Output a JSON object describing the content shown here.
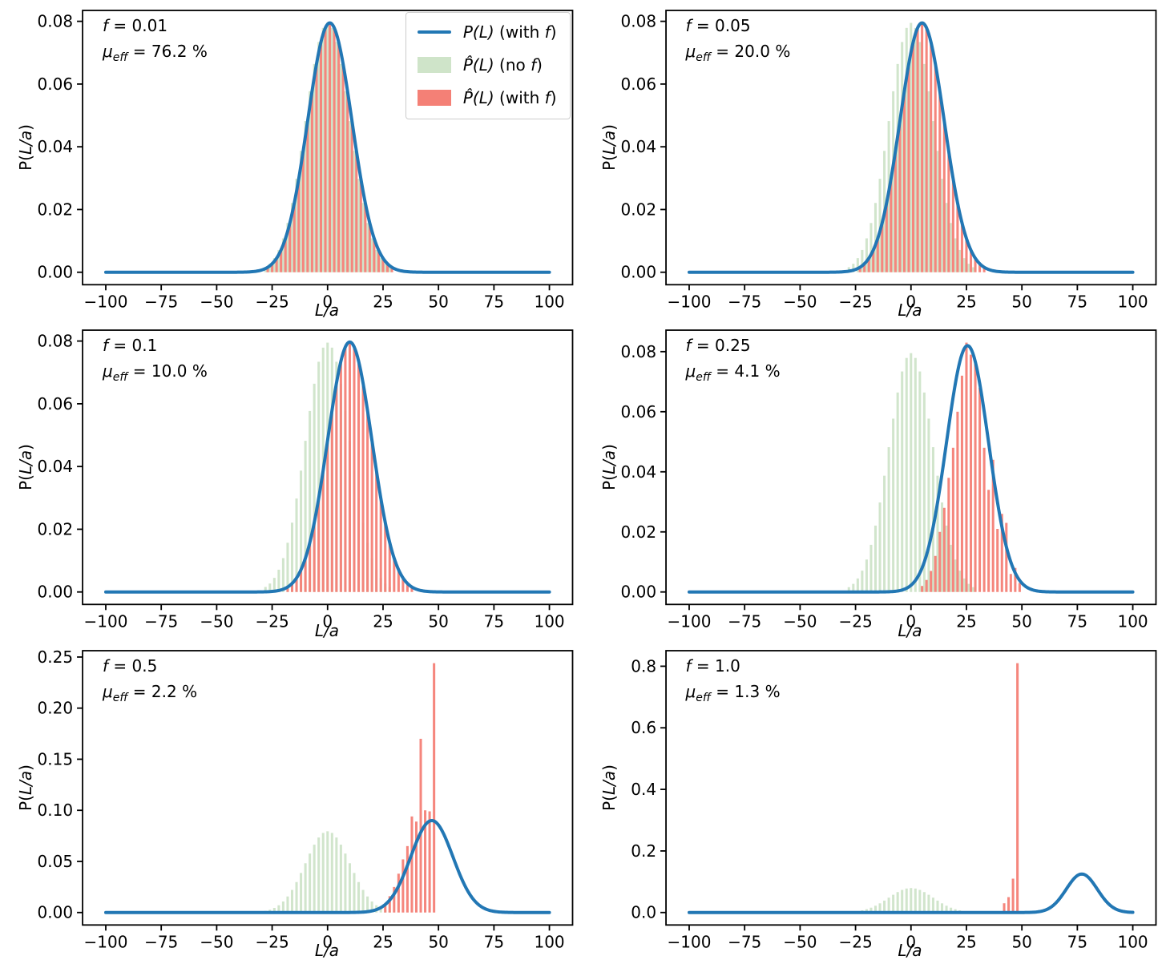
{
  "colors": {
    "curve": "#2277b4",
    "hist_no_f": "#cfe4c9",
    "hist_with_f": "#f48076",
    "axis": "#000000",
    "legend_border": "#cccccc"
  },
  "legend": {
    "items": [
      {
        "math": "P(L)",
        "pre": " (with ",
        "f": "f",
        "post": ")",
        "swatch": "line-blue"
      },
      {
        "math": "P̂(L)",
        "pre": " (no ",
        "f": "f",
        "post": ")",
        "swatch": "patch-green"
      },
      {
        "math": "P̂(L)",
        "pre": " (with ",
        "f": "f",
        "post": ")",
        "swatch": "patch-red"
      }
    ]
  },
  "shared": {
    "kernel_offsets": [
      -28,
      -26,
      -24,
      -22,
      -20,
      -18,
      -16,
      -14,
      -12,
      -10,
      -8,
      -6,
      -4,
      -2,
      0,
      2,
      4,
      6,
      8,
      10,
      12,
      14,
      16,
      18,
      20,
      22,
      24,
      26,
      28
    ],
    "kernel_heights": [
      0.0016,
      0.0027,
      0.0045,
      0.0071,
      0.0108,
      0.0157,
      0.0221,
      0.0298,
      0.0387,
      0.0482,
      0.0577,
      0.0664,
      0.0734,
      0.0779,
      0.0795,
      0.0779,
      0.0734,
      0.0664,
      0.0577,
      0.0482,
      0.0387,
      0.0298,
      0.0221,
      0.0157,
      0.0108,
      0.0071,
      0.0045,
      0.0027,
      0.0016
    ]
  },
  "chart_data": [
    {
      "type": "line+histogram",
      "annotation": {
        "f_sym": "f",
        "f_rest": " = 0.01",
        "mu_sym": "μ",
        "mu_sub": "eff",
        "mu_rest": " = 76.2 %"
      },
      "xlabel": "L/a",
      "ylabel_pre": "P(",
      "ylabel_mid": "L/a",
      "ylabel_post": ")",
      "xlim": [
        -110.45,
        110.45
      ],
      "ylim": [
        -0.003975,
        0.083475
      ],
      "x_tick_values": [
        -100,
        -75,
        -50,
        -25,
        0,
        25,
        50,
        75,
        100
      ],
      "x_tick_labels": [
        "−100",
        "−75",
        "−50",
        "−25",
        "0",
        "25",
        "50",
        "75",
        "100"
      ],
      "y_tick_values": [
        0,
        0.02,
        0.04,
        0.06,
        0.08
      ],
      "y_tick_labels": [
        "0.00",
        "0.02",
        "0.04",
        "0.06",
        "0.08"
      ],
      "curve": {
        "shape": "gaussian",
        "mu": 1,
        "sigma": 10,
        "amp": 0.0795,
        "x_range": [
          -100,
          100
        ]
      },
      "bars_no_f": {
        "use_kernel": true,
        "center": 0
      },
      "bars_with_f": {
        "use_kernel": true,
        "center": 1
      },
      "bar_width_units": 1.1,
      "show_legend": true
    },
    {
      "type": "line+histogram",
      "annotation": {
        "f_sym": "f",
        "f_rest": " = 0.05",
        "mu_sym": "μ",
        "mu_sub": "eff",
        "mu_rest": " = 20.0 %"
      },
      "xlabel": "L/a",
      "ylabel_pre": "P(",
      "ylabel_mid": "L/a",
      "ylabel_post": ")",
      "xlim": [
        -110.45,
        110.45
      ],
      "ylim": [
        -0.003975,
        0.083475
      ],
      "x_tick_values": [
        -100,
        -75,
        -50,
        -25,
        0,
        25,
        50,
        75,
        100
      ],
      "x_tick_labels": [
        "−100",
        "−75",
        "−50",
        "−25",
        "0",
        "25",
        "50",
        "75",
        "100"
      ],
      "y_tick_values": [
        0,
        0.02,
        0.04,
        0.06,
        0.08
      ],
      "y_tick_labels": [
        "0.00",
        "0.02",
        "0.04",
        "0.06",
        "0.08"
      ],
      "curve": {
        "shape": "gaussian",
        "mu": 5,
        "sigma": 10,
        "amp": 0.0795,
        "x_range": [
          -100,
          100
        ]
      },
      "bars_no_f": {
        "use_kernel": true,
        "center": 0
      },
      "bars_with_f": {
        "use_kernel": true,
        "center": 5
      },
      "bar_width_units": 1.1,
      "show_legend": false
    },
    {
      "type": "line+histogram",
      "annotation": {
        "f_sym": "f",
        "f_rest": " = 0.1",
        "mu_sym": "μ",
        "mu_sub": "eff",
        "mu_rest": " = 10.0 %"
      },
      "xlabel": "L/a",
      "ylabel_pre": "P(",
      "ylabel_mid": "L/a",
      "ylabel_post": ")",
      "xlim": [
        -110.45,
        110.45
      ],
      "ylim": [
        -0.003975,
        0.083475
      ],
      "x_tick_values": [
        -100,
        -75,
        -50,
        -25,
        0,
        25,
        50,
        75,
        100
      ],
      "x_tick_labels": [
        "−100",
        "−75",
        "−50",
        "−25",
        "0",
        "25",
        "50",
        "75",
        "100"
      ],
      "y_tick_values": [
        0,
        0.02,
        0.04,
        0.06,
        0.08
      ],
      "y_tick_labels": [
        "0.00",
        "0.02",
        "0.04",
        "0.06",
        "0.08"
      ],
      "curve": {
        "shape": "gaussian",
        "mu": 10,
        "sigma": 10,
        "amp": 0.0797,
        "x_range": [
          -100,
          100
        ]
      },
      "bars_no_f": {
        "use_kernel": true,
        "center": 0
      },
      "bars_with_f": {
        "use_kernel": true,
        "center": 10
      },
      "bar_width_units": 1.1,
      "show_legend": false
    },
    {
      "type": "line+histogram",
      "annotation": {
        "f_sym": "f",
        "f_rest": " = 0.25",
        "mu_sym": "μ",
        "mu_sub": "eff",
        "mu_rest": " = 4.1 %"
      },
      "xlabel": "L/a",
      "ylabel_pre": "P(",
      "ylabel_mid": "L/a",
      "ylabel_post": ")",
      "xlim": [
        -110.45,
        110.45
      ],
      "ylim": [
        -0.00415,
        0.08715
      ],
      "x_tick_values": [
        -100,
        -75,
        -50,
        -25,
        0,
        25,
        50,
        75,
        100
      ],
      "x_tick_labels": [
        "−100",
        "−75",
        "−50",
        "−25",
        "0",
        "25",
        "50",
        "75",
        "100"
      ],
      "y_tick_values": [
        0,
        0.02,
        0.04,
        0.06,
        0.08
      ],
      "y_tick_labels": [
        "0.00",
        "0.02",
        "0.04",
        "0.06",
        "0.08"
      ],
      "curve": {
        "shape": "gaussian",
        "mu": 25.5,
        "sigma": 9.5,
        "amp": 0.082,
        "x_range": [
          -100,
          100
        ]
      },
      "bars_no_f": {
        "use_kernel": true,
        "center": 0
      },
      "bars_with_f": {
        "use_kernel": false,
        "x": [
          5,
          7,
          9,
          11,
          13,
          15,
          17,
          19,
          21,
          23,
          25,
          27,
          29,
          31,
          33,
          35,
          37,
          39,
          41,
          43,
          45,
          47,
          49
        ],
        "heights": [
          0.002,
          0.004,
          0.007,
          0.012,
          0.02,
          0.028,
          0.038,
          0.048,
          0.06,
          0.072,
          0.083,
          0.079,
          0.076,
          0.068,
          0.048,
          0.034,
          0.044,
          0.021,
          0.026,
          0.023,
          0.006,
          0.008,
          0.003
        ]
      },
      "bar_width_units": 1.1,
      "show_legend": false
    },
    {
      "type": "line+histogram",
      "annotation": {
        "f_sym": "f",
        "f_rest": " = 0.5",
        "mu_sym": "μ",
        "mu_sub": "eff",
        "mu_rest": " = 2.2 %"
      },
      "xlabel": "L/a",
      "ylabel_pre": "P(",
      "ylabel_mid": "L/a",
      "ylabel_post": ")",
      "xlim": [
        -110.45,
        110.45
      ],
      "ylim": [
        -0.0122,
        0.2562
      ],
      "x_tick_values": [
        -100,
        -75,
        -50,
        -25,
        0,
        25,
        50,
        75,
        100
      ],
      "x_tick_labels": [
        "−100",
        "−75",
        "−50",
        "−25",
        "0",
        "25",
        "50",
        "75",
        "100"
      ],
      "y_tick_values": [
        0,
        0.05,
        0.1,
        0.15,
        0.2,
        0.25
      ],
      "y_tick_labels": [
        "0.00",
        "0.05",
        "0.10",
        "0.15",
        "0.20",
        "0.25"
      ],
      "curve": {
        "shape": "gaussian",
        "mu": 47,
        "sigma": 9.5,
        "amp": 0.09,
        "x_range": [
          -100,
          100
        ]
      },
      "bars_no_f": {
        "use_kernel": true,
        "center": 0
      },
      "bars_with_f": {
        "use_kernel": false,
        "x": [
          26,
          28,
          30,
          32,
          34,
          36,
          38,
          40,
          42,
          44,
          46,
          48
        ],
        "heights": [
          0.008,
          0.016,
          0.025,
          0.038,
          0.052,
          0.065,
          0.094,
          0.089,
          0.17,
          0.1,
          0.099,
          0.244
        ]
      },
      "bar_width_units": 1.1,
      "show_legend": false
    },
    {
      "type": "line+histogram",
      "annotation": {
        "f_sym": "f",
        "f_rest": " = 1.0",
        "mu_sym": "μ",
        "mu_sub": "eff",
        "mu_rest": " = 1.3 %"
      },
      "xlabel": "L/a",
      "ylabel_pre": "P(",
      "ylabel_mid": "L/a",
      "ylabel_post": ")",
      "xlim": [
        -110.45,
        110.45
      ],
      "ylim": [
        -0.0405,
        0.8505
      ],
      "x_tick_values": [
        -100,
        -75,
        -50,
        -25,
        0,
        25,
        50,
        75,
        100
      ],
      "x_tick_labels": [
        "−100",
        "−75",
        "−50",
        "−25",
        "0",
        "25",
        "50",
        "75",
        "100"
      ],
      "y_tick_values": [
        0,
        0.2,
        0.4,
        0.6,
        0.8
      ],
      "y_tick_labels": [
        "0.0",
        "0.2",
        "0.4",
        "0.6",
        "0.8"
      ],
      "curve": {
        "shape": "gaussian",
        "mu": 77,
        "sigma": 7,
        "amp": 0.125,
        "x_range": [
          -100,
          100
        ]
      },
      "bars_no_f": {
        "use_kernel": true,
        "center": 0
      },
      "bars_with_f": {
        "use_kernel": false,
        "x": [
          42,
          44,
          46,
          48
        ],
        "heights": [
          0.03,
          0.05,
          0.11,
          0.81
        ]
      },
      "bar_width_units": 1.1,
      "show_legend": false
    }
  ]
}
